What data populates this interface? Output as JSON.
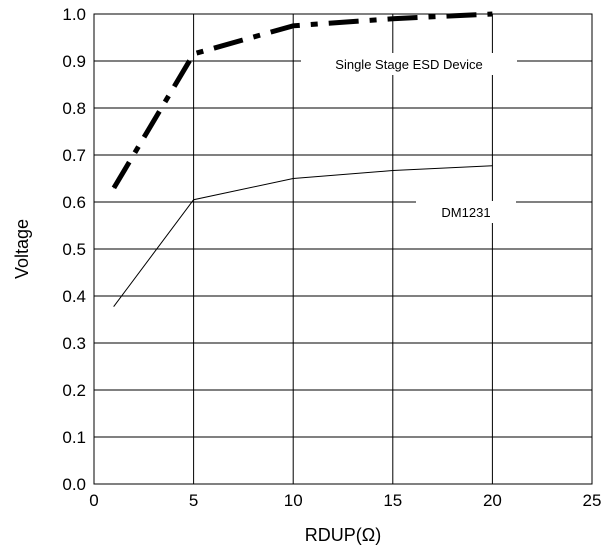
{
  "chart_data": {
    "type": "line",
    "xlabel": "RDUP(Ω)",
    "ylabel": "Voltage",
    "xlim": [
      0,
      25
    ],
    "ylim": [
      0,
      1.0
    ],
    "xticks": [
      "0",
      "5",
      "10",
      "15",
      "20",
      "25"
    ],
    "yticks": [
      "0.0",
      "0.1",
      "0.2",
      "0.3",
      "0.4",
      "0.5",
      "0.6",
      "0.7",
      "0.8",
      "0.9",
      "1.0"
    ],
    "grid": true,
    "series": [
      {
        "name": "Single Stage ESD Device",
        "line_style": "dash-dot",
        "color": "#000000",
        "x": [
          1,
          5,
          10,
          15,
          20
        ],
        "y": [
          0.63,
          0.915,
          0.975,
          0.99,
          1.0
        ]
      },
      {
        "name": "DM1231",
        "line_style": "solid-thin",
        "color": "#000000",
        "x": [
          1,
          5,
          10,
          15,
          20
        ],
        "y": [
          0.378,
          0.605,
          0.65,
          0.667,
          0.677
        ]
      }
    ],
    "annotations": [
      "Single Stage ESD Device",
      "DM1231"
    ]
  }
}
